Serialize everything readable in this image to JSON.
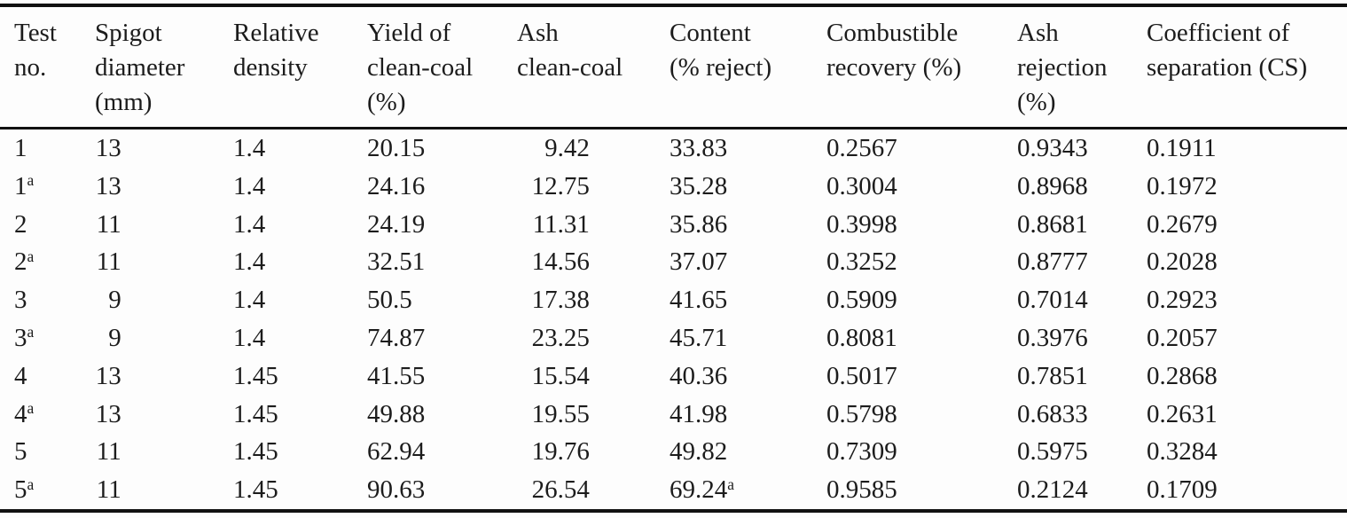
{
  "table": {
    "superscript_marker": "a",
    "columns": [
      {
        "id": "test-no",
        "header": "Test\nno.",
        "align": ""
      },
      {
        "id": "spigot-diameter-mm",
        "header": "Spigot\ndiameter\n(mm)",
        "align": "num2"
      },
      {
        "id": "relative-density",
        "header": "Relative\ndensity",
        "align": ""
      },
      {
        "id": "yield-of-clean-coal-pct",
        "header": "Yield of\nclean-coal\n(%)",
        "align": ""
      },
      {
        "id": "ash-clean-coal",
        "header": "Ash\nclean-coal",
        "align": "num5"
      },
      {
        "id": "content-pct-reject",
        "header": "Content\n(% reject)",
        "align": ""
      },
      {
        "id": "combustible-recovery-pct",
        "header": "Combustible\nrecovery (%)",
        "align": ""
      },
      {
        "id": "ash-rejection-pct",
        "header": "Ash\nrejection\n(%)",
        "align": ""
      },
      {
        "id": "coefficient-of-separation",
        "header": "Coefficient of\nseparation (CS)",
        "align": ""
      }
    ],
    "rows": [
      [
        "1",
        "13",
        "1.4",
        "20.15",
        "9.42",
        "33.83",
        "0.2567",
        "0.9343",
        "0.1911"
      ],
      [
        "1^a",
        "13",
        "1.4",
        "24.16",
        "12.75",
        "35.28",
        "0.3004",
        "0.8968",
        "0.1972"
      ],
      [
        "2",
        "11",
        "1.4",
        "24.19",
        "11.31",
        "35.86",
        "0.3998",
        "0.8681",
        "0.2679"
      ],
      [
        "2^a",
        "11",
        "1.4",
        "32.51",
        "14.56",
        "37.07",
        "0.3252",
        "0.8777",
        "0.2028"
      ],
      [
        "3",
        "9",
        "1.4",
        "50.5",
        "17.38",
        "41.65",
        "0.5909",
        "0.7014",
        "0.2923"
      ],
      [
        "3^a",
        "9",
        "1.4",
        "74.87",
        "23.25",
        "45.71",
        "0.8081",
        "0.3976",
        "0.2057"
      ],
      [
        "4",
        "13",
        "1.45",
        "41.55",
        "15.54",
        "40.36",
        "0.5017",
        "0.7851",
        "0.2868"
      ],
      [
        "4^a",
        "13",
        "1.45",
        "49.88",
        "19.55",
        "41.98",
        "0.5798",
        "0.6833",
        "0.2631"
      ],
      [
        "5",
        "11",
        "1.45",
        "62.94",
        "19.76",
        "49.82",
        "0.7309",
        "0.5975",
        "0.3284"
      ],
      [
        "5^a",
        "11",
        "1.45",
        "90.63",
        "26.54",
        "69.24^a",
        "0.9585",
        "0.2124",
        "0.1709"
      ]
    ]
  },
  "colors": {
    "text": "#1c1c1c",
    "rule": "#111111",
    "background": "#fdfdfd"
  }
}
